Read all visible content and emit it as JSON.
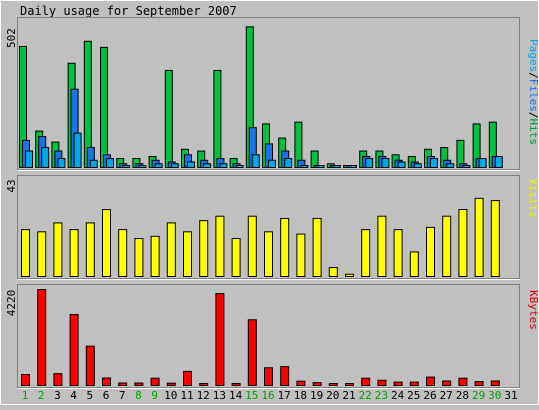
{
  "chart_data": [
    {
      "type": "bar",
      "title": "Daily usage for September 2007",
      "ylabel_max": "502",
      "ylim": [
        0,
        502
      ],
      "legend": [
        {
          "text": "Pages",
          "color": "#00a8e8"
        },
        {
          "text": "/",
          "color": "#000000"
        },
        {
          "text": "Files",
          "color": "#1874e8"
        },
        {
          "text": "/",
          "color": "#000000"
        },
        {
          "text": "Hits",
          "color": "#00a030"
        }
      ],
      "series": [
        {
          "name": "Hits",
          "color": "#00c040",
          "values": [
            419,
            126,
            88,
            361,
            437,
            416,
            31,
            31,
            38,
            336,
            63,
            57,
            336,
            31,
            487,
            151,
            102,
            157,
            57,
            13,
            6,
            57,
            57,
            44,
            38,
            63,
            69,
            94,
            151,
            157,
            0
          ]
        },
        {
          "name": "Files",
          "color": "#1874e8",
          "values": [
            94,
            107,
            57,
            271,
            69,
            44,
            13,
            13,
            25,
            19,
            44,
            25,
            31,
            13,
            138,
            82,
            57,
            25,
            6,
            6,
            6,
            38,
            38,
            25,
            19,
            38,
            25,
            13,
            31,
            38,
            0
          ]
        },
        {
          "name": "Pages",
          "color": "#00a8e8",
          "values": [
            57,
            69,
            31,
            119,
            25,
            31,
            6,
            6,
            13,
            13,
            19,
            13,
            13,
            6,
            44,
            25,
            31,
            6,
            6,
            6,
            6,
            31,
            31,
            19,
            13,
            31,
            13,
            6,
            31,
            38,
            0
          ]
        }
      ]
    },
    {
      "type": "bar",
      "ylabel_max": "43",
      "ylim": [
        0,
        43
      ],
      "legend": [
        {
          "text": "Visits",
          "color": "#f0f000"
        }
      ],
      "series": [
        {
          "name": "Visits",
          "color": "#ffff00",
          "values": [
            21,
            20,
            24,
            21,
            24,
            30,
            21,
            17,
            18,
            24,
            20,
            25,
            27,
            17,
            27,
            20,
            26,
            19,
            26,
            4,
            1,
            21,
            27,
            21,
            11,
            22,
            27,
            30,
            35,
            34,
            0
          ]
        }
      ]
    },
    {
      "type": "bar",
      "ylabel_max": "4220",
      "ylim": [
        0,
        4220
      ],
      "legend": [
        {
          "text": "KBytes",
          "color": "#e00000"
        }
      ],
      "series": [
        {
          "name": "KBytes",
          "color": "#ff0000",
          "values": [
            480,
            4220,
            520,
            3120,
            1730,
            330,
            110,
            110,
            320,
            100,
            620,
            80,
            4040,
            60,
            2890,
            780,
            830,
            190,
            130,
            60,
            30,
            320,
            230,
            150,
            150,
            370,
            200,
            320,
            170,
            200,
            0
          ]
        }
      ]
    }
  ],
  "x_axis": {
    "days": [
      "1",
      "2",
      "3",
      "4",
      "5",
      "6",
      "7",
      "8",
      "9",
      "10",
      "11",
      "12",
      "13",
      "14",
      "15",
      "16",
      "17",
      "18",
      "19",
      "20",
      "21",
      "22",
      "23",
      "24",
      "25",
      "26",
      "27",
      "28",
      "29",
      "30",
      "31"
    ],
    "weekend_color": "#00a000",
    "weekday_color": "#000000",
    "weekend": [
      true,
      true,
      false,
      false,
      false,
      false,
      false,
      true,
      true,
      false,
      false,
      false,
      false,
      false,
      true,
      true,
      false,
      false,
      false,
      false,
      false,
      true,
      true,
      false,
      false,
      false,
      false,
      false,
      true,
      true,
      false
    ]
  }
}
